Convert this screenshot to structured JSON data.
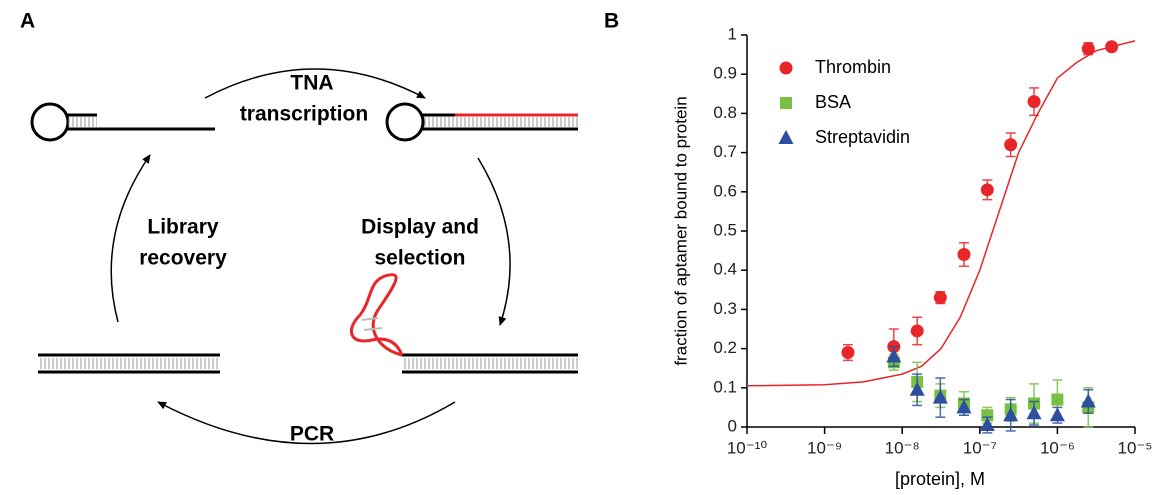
{
  "panel_a": {
    "letter": "A",
    "step_top_1": "TNA",
    "step_top_2": "transcription",
    "step_right_1": "Display and",
    "step_right_2": "selection",
    "step_left_1": "Library",
    "step_left_2": "recovery",
    "step_bottom": "PCR"
  },
  "chart_data": {
    "type": "scatter",
    "panel_letter": "B",
    "x_label": "[protein], M",
    "y_label": "fraction of aptamer bound to protein",
    "x_log": true,
    "xlim": [
      1e-10,
      1e-05
    ],
    "ylim": [
      0,
      1
    ],
    "xticks": [
      {
        "value": 1e-10,
        "label": "10⁻¹⁰"
      },
      {
        "value": 1e-09,
        "label": "10⁻⁹"
      },
      {
        "value": 1e-08,
        "label": "10⁻⁸"
      },
      {
        "value": 1e-07,
        "label": "10⁻⁷"
      },
      {
        "value": 1e-06,
        "label": "10⁻⁶"
      },
      {
        "value": 1e-05,
        "label": "10⁻⁵"
      }
    ],
    "yticks": [
      0,
      0.1,
      0.2,
      0.3,
      0.4,
      0.5,
      0.6,
      0.7,
      0.8,
      0.9,
      1
    ],
    "legend": "upper left",
    "series": [
      {
        "name": "Thrombin",
        "color": "#e8262a",
        "marker": "circle",
        "x": [
          2e-09,
          7.8e-09,
          1.56e-08,
          3.1e-08,
          6.25e-08,
          1.25e-07,
          2.5e-07,
          5e-07,
          2.5e-06,
          5e-06
        ],
        "values": [
          0.19,
          0.205,
          0.245,
          0.33,
          0.44,
          0.605,
          0.72,
          0.83,
          0.965,
          0.97
        ],
        "errors": [
          0.02,
          0.045,
          0.035,
          0.015,
          0.03,
          0.025,
          0.03,
          0.035,
          0.015,
          0.01
        ]
      },
      {
        "name": "BSA",
        "color": "#77c043",
        "marker": "square",
        "x": [
          7.8e-09,
          1.56e-08,
          3.1e-08,
          6.25e-08,
          1.25e-07,
          2.5e-07,
          5e-07,
          1e-06,
          2.5e-06
        ],
        "values": [
          0.165,
          0.115,
          0.08,
          0.06,
          0.03,
          0.045,
          0.06,
          0.07,
          0.05
        ],
        "errors": [
          0.02,
          0.05,
          0.03,
          0.03,
          0.02,
          0.03,
          0.05,
          0.05,
          0.05
        ]
      },
      {
        "name": "Streptavidin",
        "color": "#2e4ea0",
        "marker": "triangle",
        "x": [
          7.8e-09,
          1.56e-08,
          3.1e-08,
          6.25e-08,
          1.25e-07,
          2.5e-07,
          5e-07,
          1e-06,
          2.5e-06
        ],
        "values": [
          0.18,
          0.095,
          0.075,
          0.05,
          0.005,
          0.03,
          0.035,
          0.03,
          0.065
        ],
        "errors": [
          0.025,
          0.04,
          0.05,
          0.02,
          0.02,
          0.04,
          0.03,
          0.02,
          0.03
        ]
      }
    ],
    "fit": {
      "color": "#e8262a",
      "x": [
        1e-10,
        1e-09,
        3.16e-09,
        1e-08,
        1.78e-08,
        3.16e-08,
        5.6e-08,
        1e-07,
        1.78e-07,
        3.16e-07,
        5.6e-07,
        1e-06,
        1.78e-06,
        3.16e-06,
        1e-05
      ],
      "values": [
        0.105,
        0.108,
        0.115,
        0.135,
        0.155,
        0.2,
        0.28,
        0.4,
        0.55,
        0.7,
        0.8,
        0.89,
        0.93,
        0.96,
        0.985
      ]
    }
  }
}
